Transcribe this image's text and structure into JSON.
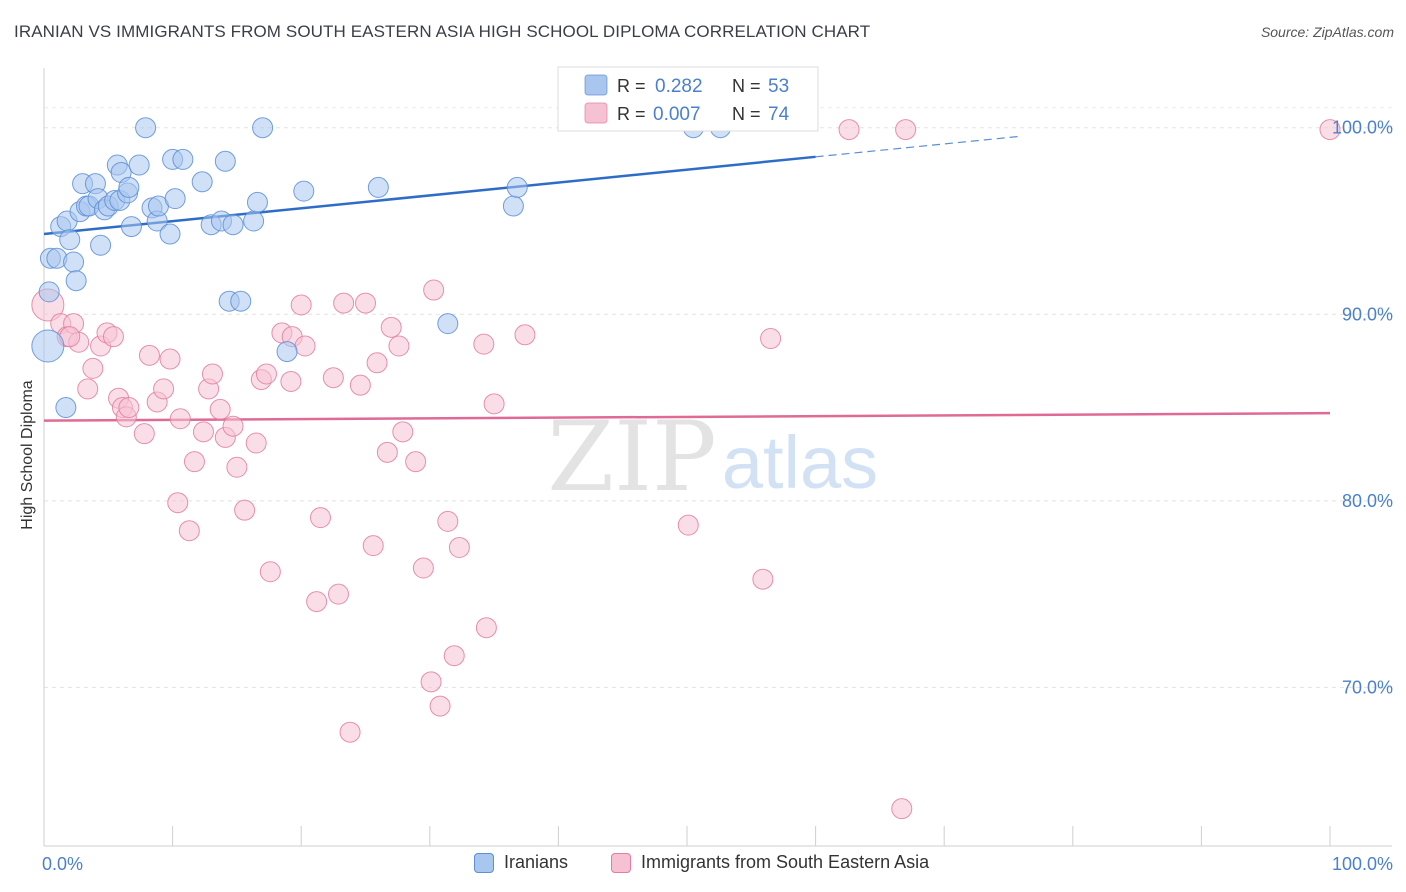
{
  "header": {
    "title": "IRANIAN VS IMMIGRANTS FROM SOUTH EASTERN ASIA HIGH SCHOOL DIPLOMA CORRELATION CHART",
    "source": "Source: ZipAtlas.com"
  },
  "watermark": {
    "zip": "ZIP",
    "atlas": "atlas"
  },
  "chart_data": {
    "type": "scatter",
    "title": "IRANIAN VS IMMIGRANTS FROM SOUTH EASTERN ASIA HIGH SCHOOL DIPLOMA CORRELATION CHART",
    "xlabel": "",
    "ylabel": "High School Diploma",
    "xlim": [
      0,
      100
    ],
    "ylim": [
      61.5,
      103.2
    ],
    "x_tick_labels": [
      "0.0%",
      "100.0%"
    ],
    "y_ticks": [
      {
        "value": 70,
        "label": "70.0%"
      },
      {
        "value": 80,
        "label": "80.0%"
      },
      {
        "value": 90,
        "label": "90.0%"
      },
      {
        "value": 100,
        "label": "100.0%"
      }
    ],
    "grid": true,
    "legend_placement": "bottom",
    "colors": {
      "blue": "#5b8fd6",
      "blue_fill": "#a9c6ee",
      "pink": "#e37ca0",
      "pink_fill": "#f6c2d3"
    },
    "stats": [
      {
        "r_label": "R =",
        "r_value": "0.282",
        "n_label": "N =",
        "n_value": "53"
      },
      {
        "r_label": "R =",
        "r_value": "0.007",
        "n_label": "N =",
        "n_value": "74"
      }
    ],
    "series": [
      {
        "name": "Iranians",
        "color": "#5b8fd6",
        "trend": {
          "x0": 0,
          "y0": 94.3,
          "x1": 100,
          "y1": 101.2,
          "solid_until": 60
        },
        "points": [
          [
            0.3,
            88.3,
            16
          ],
          [
            0.4,
            91.2,
            10
          ],
          [
            0.5,
            93.0,
            10
          ],
          [
            1.0,
            93.0,
            10
          ],
          [
            1.3,
            94.7,
            10
          ],
          [
            1.7,
            85.0,
            10
          ],
          [
            1.8,
            95.0,
            10
          ],
          [
            2.0,
            94.0,
            10
          ],
          [
            2.3,
            92.8,
            10
          ],
          [
            2.5,
            91.8,
            10
          ],
          [
            2.8,
            95.5,
            10
          ],
          [
            3.0,
            97.0,
            10
          ],
          [
            3.3,
            95.8,
            10
          ],
          [
            3.5,
            95.8,
            10
          ],
          [
            4.0,
            97.0,
            10
          ],
          [
            4.2,
            96.2,
            10
          ],
          [
            4.4,
            93.7,
            10
          ],
          [
            4.7,
            95.6,
            10
          ],
          [
            5.0,
            95.8,
            10
          ],
          [
            5.5,
            96.1,
            10
          ],
          [
            5.9,
            96.1,
            10
          ],
          [
            5.7,
            98.0,
            10
          ],
          [
            6.0,
            97.6,
            10
          ],
          [
            6.5,
            96.5,
            10
          ],
          [
            6.8,
            94.7,
            10
          ],
          [
            6.6,
            96.8,
            10
          ],
          [
            7.4,
            98.0,
            10
          ],
          [
            7.9,
            100.0,
            10
          ],
          [
            8.4,
            95.7,
            10
          ],
          [
            8.8,
            95.0,
            10
          ],
          [
            8.9,
            95.8,
            10
          ],
          [
            9.8,
            94.3,
            10
          ],
          [
            10.0,
            98.3,
            10
          ],
          [
            10.2,
            96.2,
            10
          ],
          [
            10.8,
            98.3,
            10
          ],
          [
            12.3,
            97.1,
            10
          ],
          [
            13.0,
            94.8,
            10
          ],
          [
            13.8,
            95.0,
            10
          ],
          [
            14.1,
            98.2,
            10
          ],
          [
            14.4,
            90.7,
            10
          ],
          [
            14.7,
            94.8,
            10
          ],
          [
            15.3,
            90.7,
            10
          ],
          [
            16.3,
            95.0,
            10
          ],
          [
            16.6,
            96.0,
            10
          ],
          [
            17.0,
            100.0,
            10
          ],
          [
            18.9,
            88.0,
            10
          ],
          [
            20.2,
            96.6,
            10
          ],
          [
            26.0,
            96.8,
            10
          ],
          [
            31.4,
            89.5,
            10
          ],
          [
            36.5,
            95.8,
            10
          ],
          [
            36.8,
            96.8,
            10
          ],
          [
            50.5,
            100.0,
            10
          ],
          [
            52.6,
            100.0,
            10
          ]
        ]
      },
      {
        "name": "Immigrants from South Eastern Asia",
        "color": "#e37ca0",
        "trend": {
          "x0": 0,
          "y0": 84.3,
          "x1": 100,
          "y1": 84.7
        },
        "points": [
          [
            0.3,
            90.5,
            16
          ],
          [
            1.3,
            89.5,
            10
          ],
          [
            1.8,
            88.8,
            10
          ],
          [
            2.3,
            89.5,
            10
          ],
          [
            2.7,
            88.5,
            10
          ],
          [
            3.4,
            86.0,
            10
          ],
          [
            3.8,
            87.1,
            10
          ],
          [
            4.4,
            88.3,
            10
          ],
          [
            4.9,
            89.0,
            10
          ],
          [
            5.4,
            88.8,
            10
          ],
          [
            5.8,
            85.5,
            10
          ],
          [
            6.1,
            85.0,
            10
          ],
          [
            6.4,
            84.5,
            10
          ],
          [
            6.6,
            85.0,
            10
          ],
          [
            7.8,
            83.6,
            10
          ],
          [
            8.2,
            87.8,
            10
          ],
          [
            8.8,
            85.3,
            10
          ],
          [
            9.3,
            86.0,
            10
          ],
          [
            9.8,
            87.6,
            10
          ],
          [
            10.4,
            79.9,
            10
          ],
          [
            10.6,
            84.4,
            10
          ],
          [
            11.3,
            78.4,
            10
          ],
          [
            11.7,
            82.1,
            10
          ],
          [
            12.4,
            83.7,
            10
          ],
          [
            12.8,
            86.0,
            10
          ],
          [
            13.1,
            86.8,
            10
          ],
          [
            13.7,
            84.9,
            10
          ],
          [
            14.1,
            83.4,
            10
          ],
          [
            14.7,
            84.0,
            10
          ],
          [
            15.0,
            81.8,
            10
          ],
          [
            15.6,
            79.5,
            10
          ],
          [
            16.5,
            83.1,
            10
          ],
          [
            16.9,
            86.5,
            10
          ],
          [
            17.3,
            86.8,
            10
          ],
          [
            17.6,
            76.2,
            10
          ],
          [
            18.5,
            89.0,
            10
          ],
          [
            19.2,
            86.4,
            10
          ],
          [
            19.3,
            88.8,
            10
          ],
          [
            20.0,
            90.5,
            10
          ],
          [
            20.3,
            88.3,
            10
          ],
          [
            21.2,
            74.6,
            10
          ],
          [
            21.5,
            79.1,
            10
          ],
          [
            22.5,
            86.6,
            10
          ],
          [
            22.9,
            75.0,
            10
          ],
          [
            23.3,
            90.6,
            10
          ],
          [
            24.6,
            86.2,
            10
          ],
          [
            25.0,
            90.6,
            10
          ],
          [
            25.6,
            77.6,
            10
          ],
          [
            25.9,
            87.4,
            10
          ],
          [
            26.7,
            82.6,
            10
          ],
          [
            27.0,
            89.3,
            10
          ],
          [
            27.6,
            88.3,
            10
          ],
          [
            27.9,
            83.7,
            10
          ],
          [
            28.9,
            82.1,
            10
          ],
          [
            29.5,
            76.4,
            10
          ],
          [
            30.1,
            70.3,
            10
          ],
          [
            30.3,
            91.3,
            10
          ],
          [
            30.8,
            69.0,
            10
          ],
          [
            31.4,
            78.9,
            10
          ],
          [
            31.9,
            71.7,
            10
          ],
          [
            32.3,
            77.5,
            10
          ],
          [
            34.2,
            88.4,
            10
          ],
          [
            34.4,
            73.2,
            10
          ],
          [
            35.0,
            85.2,
            10
          ],
          [
            23.8,
            67.6,
            10
          ],
          [
            37.4,
            88.9,
            10
          ],
          [
            50.1,
            78.7,
            10
          ],
          [
            55.9,
            75.8,
            10
          ],
          [
            56.5,
            88.7,
            10
          ],
          [
            62.6,
            99.9,
            10
          ],
          [
            66.7,
            63.5,
            10
          ],
          [
            67.0,
            99.9,
            10
          ],
          [
            100.0,
            99.9,
            10
          ],
          [
            2.0,
            88.8,
            10
          ]
        ]
      }
    ]
  },
  "legend": {
    "items": [
      {
        "label": "Iranians"
      },
      {
        "label": "Immigrants from South Eastern Asia"
      }
    ]
  }
}
